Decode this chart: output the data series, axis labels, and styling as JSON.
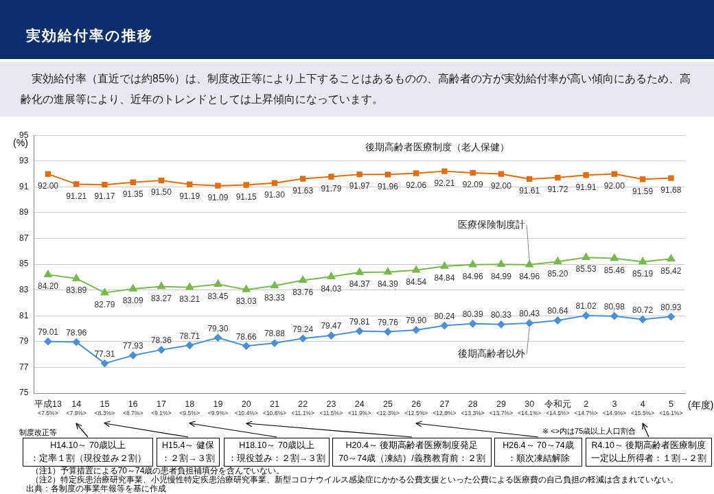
{
  "chart_data": {
    "type": "line",
    "title": "実効給付率の推移",
    "subtitle": "　実効給付率（直近では約85%）は、制度改正等により上下することはあるものの、高齢者の方が実効給付率が高い傾向にあるため、高齢化の進展等により、近年のトレンドとしては上昇傾向になっています。",
    "ylabel": "(%)",
    "xlabel": "(年度)",
    "categories": [
      "平成13\n<7.5%>",
      "14\n<7.9%>",
      "15\n<8.3%>",
      "16\n<8.7%>",
      "17\n<9.1%>",
      "18\n<9.5%>",
      "19\n<9.9%>",
      "20\n<10.4%>",
      "21\n<10.8%>",
      "22\n<11.1%>",
      "23\n<11.5%>",
      "24\n<11.9%>",
      "25\n<12.3%>",
      "26\n<12.5%>",
      "27\n<12.8%>",
      "28\n<13.3%>",
      "29\n<13.7%>",
      "30\n<14.1%>",
      "令和元\n<14.5%>",
      "2\n<14.7%>",
      "3\n<14.9%>",
      "4\n<15.5%>",
      "5\n<16.1%>"
    ],
    "ylim": [
      75,
      95
    ],
    "yticks": [
      75,
      77,
      79,
      81,
      83,
      85,
      87,
      89,
      91,
      93,
      95
    ],
    "grid": "y",
    "legend": false,
    "line_style": "solid",
    "series": [
      {
        "name": "後期高齢者医療制度（老人保健）",
        "color": "#e46c0a",
        "marker": "square",
        "values": [
          92.0,
          91.21,
          91.17,
          91.35,
          91.5,
          91.19,
          91.09,
          91.15,
          91.3,
          91.63,
          91.79,
          91.97,
          91.96,
          92.06,
          92.21,
          92.09,
          92.0,
          91.61,
          91.72,
          91.91,
          92.0,
          91.59,
          91.68
        ],
        "value_labels": [
          "92.00",
          "91.21",
          "91.17",
          "91.35",
          "91.50",
          "91.19",
          "91.09",
          "91.15",
          "91.30",
          "91.63",
          "91.79",
          "91.97",
          "91.96",
          "92.06",
          "92.21",
          "92.09",
          "92.00",
          "91.61",
          "91.72",
          "91.91",
          "92.00",
          "91.59",
          "91.68"
        ]
      },
      {
        "name": "医療保険制度計",
        "color": "#77b94b",
        "marker": "triangle",
        "values": [
          84.2,
          83.89,
          82.79,
          83.09,
          83.27,
          83.21,
          83.45,
          83.03,
          83.33,
          83.76,
          84.03,
          84.37,
          84.39,
          84.54,
          84.84,
          84.96,
          84.99,
          84.96,
          85.2,
          85.53,
          85.46,
          85.19,
          85.42
        ],
        "value_labels": [
          "84.20",
          "83.89",
          "82.79",
          "83.09",
          "83.27",
          "83.21",
          "83.45",
          "83.03",
          "83.33",
          "83.76",
          "84.03",
          "84.37",
          "84.39",
          "84.54",
          "84.84",
          "84.96",
          "84.99",
          "84.96",
          "85.20",
          "85.53",
          "85.46",
          "85.19",
          "85.42"
        ]
      },
      {
        "name": "後期高齢者以外",
        "color": "#4a8fd9",
        "marker": "diamond",
        "values": [
          79.01,
          78.96,
          77.31,
          77.93,
          78.36,
          78.71,
          79.3,
          78.66,
          78.88,
          79.24,
          79.47,
          79.81,
          79.76,
          79.9,
          80.24,
          80.39,
          80.33,
          80.43,
          80.64,
          81.02,
          80.98,
          80.72,
          80.93
        ],
        "value_labels": [
          "79.01",
          "78.96",
          "77.31",
          "77.93",
          "78.36",
          "78.71",
          "79.30",
          "78.66",
          "78.88",
          "79.24",
          "79.47",
          "79.81",
          "79.76",
          "79.90",
          "80.24",
          "80.39",
          "80.33",
          "80.43",
          "80.64",
          "81.02",
          "80.98",
          "80.72",
          "80.93"
        ]
      }
    ],
    "annotations": [
      "制度改正等",
      "H14.10～ 70歳以上",
      "：定率１割（現役並み２割）",
      "H15.4～ 健保",
      "：２割→３割",
      "H18.10～ 70歳以上",
      "：現役並み：２割→３割",
      "H20.4～ 後期高齢者医療制度発足",
      "70～74歳（凍結）/義務教育前：２割",
      "H26.4～ 70～74歳",
      "：順次凍結解除",
      "R4.10～ 後期高齢者医療制度",
      "一定以上所得者：１割→２割",
      "※ <>内は75歳以上人口割合",
      "（注1）予算措置による70～74歳の患者負担補填分を含んでいない。",
      "（注2）特定疾患治療研究事業、小児慢性特定疾患治療研究事業、新型コロナウイルス感染症にかかる公費支援といった公費による医療費の自己負担の軽減は含まれていない。",
      "出典：各制度の事業年報等を基に作成"
    ]
  }
}
